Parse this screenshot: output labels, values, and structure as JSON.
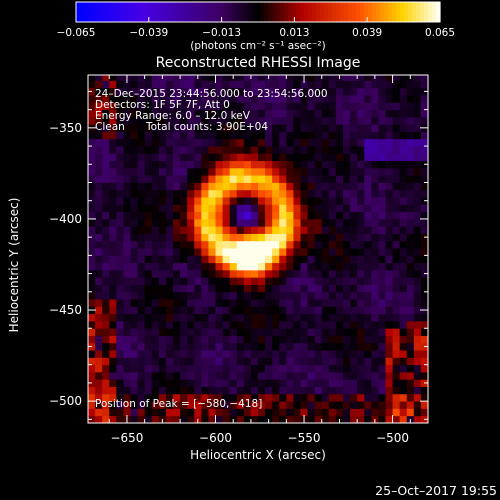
{
  "chart_data": {
    "type": "heatmap",
    "title": "Reconstructed RHESSI Image",
    "xlabel": "Heliocentric X (arcsec)",
    "ylabel": "Heliocentric Y (arcsec)",
    "xlim": [
      -672,
      -480
    ],
    "ylim": [
      -512,
      -321
    ],
    "x_ticks": [
      -650,
      -600,
      -550,
      -500
    ],
    "y_ticks": [
      -350,
      -400,
      -450,
      -500
    ],
    "x_tick_labels": [
      "−650",
      "−600",
      "−550",
      "−500"
    ],
    "y_tick_labels": [
      "−350",
      "−400",
      "−450",
      "−500"
    ],
    "colorbar": {
      "range": [
        -0.065,
        0.065
      ],
      "ticks": [
        -0.065,
        -0.039,
        -0.013,
        0.013,
        0.039,
        0.065
      ],
      "tick_labels": [
        "−0.065",
        "−0.039",
        "−0.013",
        "0.013",
        "0.039",
        "0.065"
      ],
      "unit_label": "(photons cm⁻² s⁻¹ asec⁻²)"
    },
    "annotations": {
      "time": "24–Dec–2015 23:44:56.000 to 23:54:56.000",
      "detectors": "Detectors: 1F 5F 7F, Att 0",
      "energy": "Energy Range: 6.0 – 12.0 keV",
      "method": "Clean",
      "counts": "Total counts: 3.90E+04",
      "peak": "Position of Peak = [−580,−418]"
    },
    "source": {
      "center": [
        -583,
        -399
      ],
      "ring_radius": 22,
      "peak": [
        -580,
        -418
      ],
      "peak_value": 0.065
    }
  },
  "footer": {
    "timestamp": "25–Oct–2017 19:55"
  }
}
